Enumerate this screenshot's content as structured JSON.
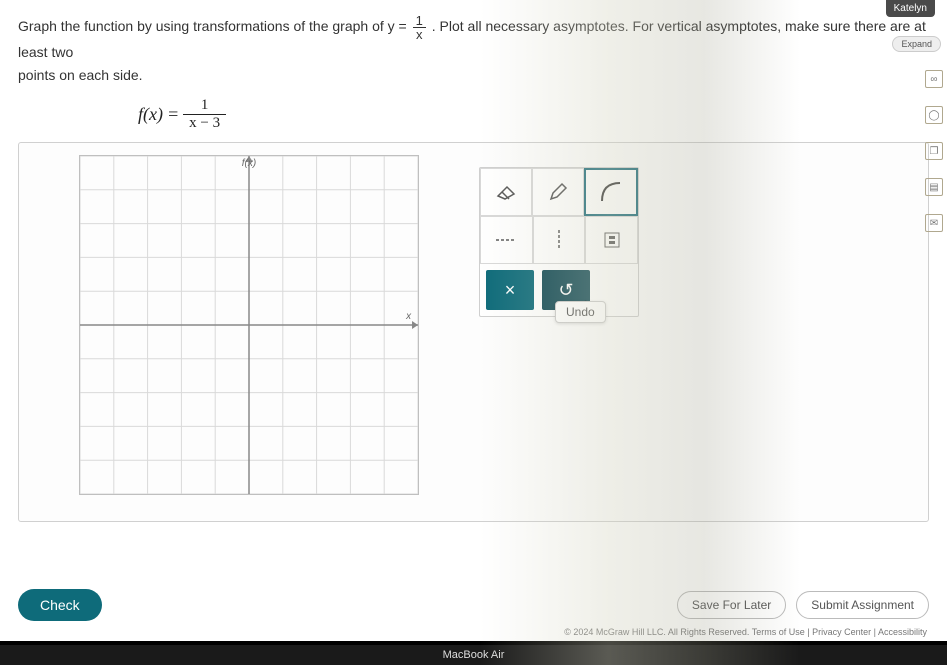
{
  "top_badge": "Katelyn",
  "expand_label": "Expand",
  "question": {
    "prefix": "Graph the function by using transformations of the graph of ",
    "base_fn_lhs": "y",
    "base_fn_num": "1",
    "base_fn_den": "x",
    "suffix": ". Plot all necessary asymptotes. For vertical asymptotes, make sure there are at least two",
    "line2": "points on each side."
  },
  "equation": {
    "lhs": "f(x)",
    "num": "1",
    "den": "x − 3"
  },
  "graph": {
    "xlim": [
      -5,
      5
    ],
    "ylim": [
      -5,
      5
    ],
    "tick_step": 1,
    "grid_color": "#d9d9d9",
    "axis_color": "#888888",
    "y_label": "f(x)"
  },
  "tools": {
    "row1": [
      "eraser-icon",
      "pencil-icon",
      "curve-icon"
    ],
    "row2": [
      "dotted-line-icon",
      "dashed-vline-icon",
      "point-icon"
    ],
    "selected_index": 2,
    "clear_symbol": "×",
    "undo_symbol": "↺",
    "undo_tooltip": "Undo"
  },
  "right_rail": [
    "∞",
    "◯",
    "❐",
    "▤",
    "✉"
  ],
  "footer": {
    "check": "Check",
    "save": "Save For Later",
    "submit": "Submit Assignment",
    "legal": "© 2024 McGraw Hill LLC. All Rights Reserved.  Terms of Use  |  Privacy Center  |  Accessibility"
  },
  "mac_label": "MacBook Air",
  "colors": {
    "teal": "#0e6b7a",
    "teal_dark": "#124a55",
    "page_bg": "#ffffff"
  }
}
